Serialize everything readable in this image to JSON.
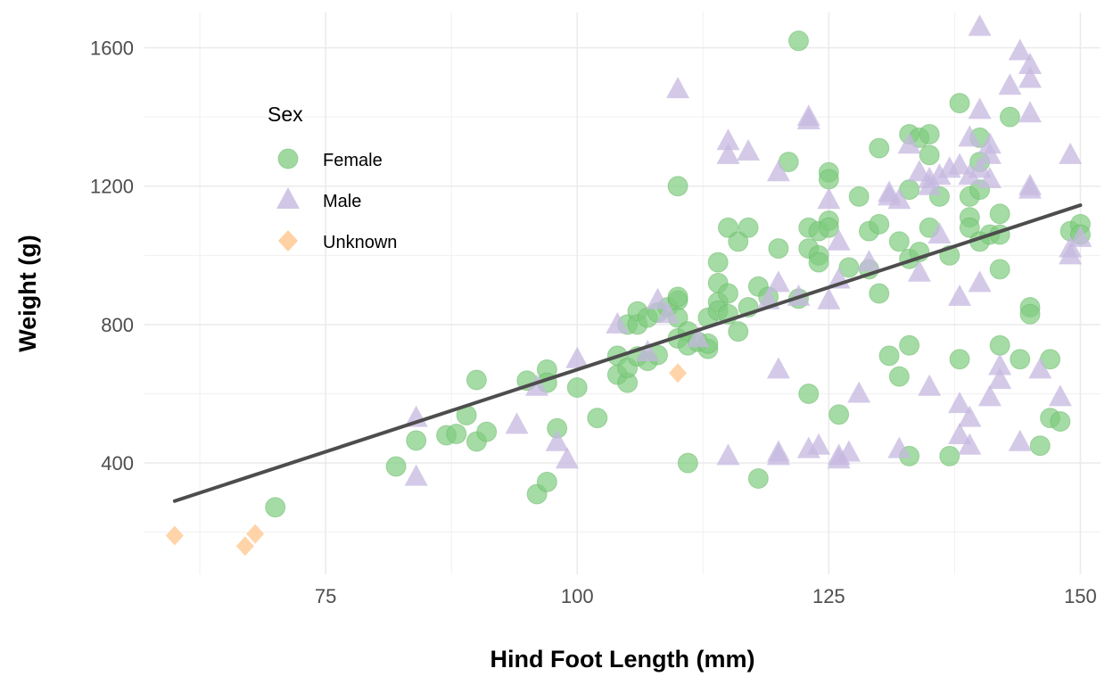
{
  "chart_data": {
    "type": "scatter",
    "xlabel": "Hind Foot Length (mm)",
    "ylabel": "Weight (g)",
    "xlim": [
      57,
      152
    ],
    "ylim": [
      78,
      1702
    ],
    "x_ticks": [
      75,
      100,
      125,
      150
    ],
    "y_ticks": [
      400,
      800,
      1200,
      1600
    ],
    "x_tick_labels": [
      "75",
      "100",
      "125",
      "150"
    ],
    "y_tick_labels": [
      "400",
      "800",
      "1200",
      "1600"
    ],
    "grid": true,
    "legend": {
      "title": "Sex",
      "placement": "top-left inside",
      "entries": [
        {
          "label": "Female",
          "shape": "circle",
          "color": "#7fcc7f"
        },
        {
          "label": "Male",
          "shape": "triangle",
          "color": "#c6b8e0"
        },
        {
          "label": "Unknown",
          "shape": "diamond",
          "color": "#ffcc99"
        }
      ]
    },
    "trend_line": {
      "x": [
        60,
        150
      ],
      "y": [
        290,
        1145
      ],
      "color": "#4d4d4d"
    },
    "series": [
      {
        "name": "Female",
        "shape": "circle",
        "color": "#7fcc7f",
        "points": [
          [
            70,
            272
          ],
          [
            82,
            390
          ],
          [
            84,
            465
          ],
          [
            87,
            480
          ],
          [
            88,
            484
          ],
          [
            89,
            538
          ],
          [
            90,
            462
          ],
          [
            90,
            640
          ],
          [
            91,
            490
          ],
          [
            95,
            638
          ],
          [
            96,
            310
          ],
          [
            97,
            345
          ],
          [
            97,
            670
          ],
          [
            97,
            632
          ],
          [
            98,
            500
          ],
          [
            100,
            618
          ],
          [
            102,
            530
          ],
          [
            104,
            655
          ],
          [
            104,
            710
          ],
          [
            105,
            800
          ],
          [
            105,
            632
          ],
          [
            105,
            675
          ],
          [
            106,
            708
          ],
          [
            106,
            838
          ],
          [
            106,
            800
          ],
          [
            107,
            695
          ],
          [
            107,
            820
          ],
          [
            108,
            712
          ],
          [
            108,
            835
          ],
          [
            109,
            850
          ],
          [
            110,
            870
          ],
          [
            110,
            880
          ],
          [
            110,
            760
          ],
          [
            110,
            820
          ],
          [
            111,
            400
          ],
          [
            111,
            780
          ],
          [
            111,
            740
          ],
          [
            112,
            750
          ],
          [
            113,
            730
          ],
          [
            113,
            745
          ],
          [
            113,
            820
          ],
          [
            114,
            980
          ],
          [
            114,
            920
          ],
          [
            114,
            865
          ],
          [
            114,
            840
          ],
          [
            115,
            1080
          ],
          [
            115,
            890
          ],
          [
            115,
            830
          ],
          [
            116,
            1040
          ],
          [
            116,
            780
          ],
          [
            117,
            1080
          ],
          [
            117,
            850
          ],
          [
            118,
            910
          ],
          [
            118,
            355
          ],
          [
            119,
            880
          ],
          [
            120,
            1020
          ],
          [
            110,
            1200
          ],
          [
            121,
            1270
          ],
          [
            122,
            1620
          ],
          [
            122,
            875
          ],
          [
            123,
            1080
          ],
          [
            123,
            600
          ],
          [
            123,
            1020
          ],
          [
            124,
            1070
          ],
          [
            124,
            1000
          ],
          [
            124,
            980
          ],
          [
            125,
            1240
          ],
          [
            125,
            1220
          ],
          [
            125,
            1100
          ],
          [
            125,
            1080
          ],
          [
            126,
            540
          ],
          [
            127,
            965
          ],
          [
            128,
            1170
          ],
          [
            129,
            960
          ],
          [
            129,
            1070
          ],
          [
            130,
            1090
          ],
          [
            130,
            1310
          ],
          [
            130,
            890
          ],
          [
            131,
            710
          ],
          [
            132,
            1040
          ],
          [
            132,
            650
          ],
          [
            133,
            1350
          ],
          [
            133,
            1190
          ],
          [
            133,
            990
          ],
          [
            133,
            740
          ],
          [
            133,
            420
          ],
          [
            134,
            1010
          ],
          [
            134,
            1340
          ],
          [
            135,
            1290
          ],
          [
            135,
            1350
          ],
          [
            135,
            1080
          ],
          [
            136,
            1170
          ],
          [
            137,
            1000
          ],
          [
            137,
            420
          ],
          [
            138,
            1440
          ],
          [
            138,
            700
          ],
          [
            139,
            1170
          ],
          [
            139,
            1110
          ],
          [
            139,
            1080
          ],
          [
            140,
            1340
          ],
          [
            140,
            1190
          ],
          [
            140,
            1270
          ],
          [
            140,
            1040
          ],
          [
            141,
            1060
          ],
          [
            142,
            1120
          ],
          [
            142,
            1060
          ],
          [
            142,
            960
          ],
          [
            142,
            740
          ],
          [
            143,
            1400
          ],
          [
            144,
            700
          ],
          [
            145,
            850
          ],
          [
            145,
            830
          ],
          [
            146,
            450
          ],
          [
            147,
            530
          ],
          [
            147,
            700
          ],
          [
            148,
            520
          ],
          [
            149,
            1070
          ],
          [
            150,
            1090
          ],
          [
            150,
            1060
          ]
        ]
      },
      {
        "name": "Male",
        "shape": "triangle",
        "color": "#c6b8e0",
        "points": [
          [
            84,
            530
          ],
          [
            84,
            360
          ],
          [
            94,
            510
          ],
          [
            96,
            620
          ],
          [
            98,
            460
          ],
          [
            99,
            410
          ],
          [
            100,
            700
          ],
          [
            104,
            800
          ],
          [
            107,
            720
          ],
          [
            108,
            870
          ],
          [
            109,
            830
          ],
          [
            110,
            1480
          ],
          [
            112,
            760
          ],
          [
            115,
            1330
          ],
          [
            115,
            1290
          ],
          [
            115,
            420
          ],
          [
            117,
            1300
          ],
          [
            119,
            870
          ],
          [
            120,
            670
          ],
          [
            120,
            430
          ],
          [
            120,
            420
          ],
          [
            120,
            1240
          ],
          [
            120,
            920
          ],
          [
            122,
            880
          ],
          [
            123,
            1400
          ],
          [
            123,
            1390
          ],
          [
            123,
            440
          ],
          [
            124,
            450
          ],
          [
            125,
            1160
          ],
          [
            125,
            870
          ],
          [
            126,
            410
          ],
          [
            126,
            420
          ],
          [
            126,
            1040
          ],
          [
            126,
            930
          ],
          [
            127,
            430
          ],
          [
            128,
            600
          ],
          [
            129,
            980
          ],
          [
            131,
            1170
          ],
          [
            131,
            1180
          ],
          [
            132,
            1160
          ],
          [
            132,
            440
          ],
          [
            133,
            1320
          ],
          [
            134,
            1240
          ],
          [
            134,
            950
          ],
          [
            135,
            620
          ],
          [
            135,
            1200
          ],
          [
            135,
            1220
          ],
          [
            136,
            1230
          ],
          [
            136,
            1060
          ],
          [
            137,
            1250
          ],
          [
            138,
            880
          ],
          [
            138,
            570
          ],
          [
            138,
            480
          ],
          [
            138,
            1260
          ],
          [
            139,
            450
          ],
          [
            139,
            530
          ],
          [
            139,
            1340
          ],
          [
            139,
            1230
          ],
          [
            140,
            1660
          ],
          [
            140,
            1420
          ],
          [
            140,
            1250
          ],
          [
            140,
            920
          ],
          [
            141,
            1320
          ],
          [
            141,
            1290
          ],
          [
            141,
            590
          ],
          [
            141,
            1220
          ],
          [
            142,
            680
          ],
          [
            142,
            640
          ],
          [
            143,
            1490
          ],
          [
            144,
            460
          ],
          [
            144,
            1590
          ],
          [
            145,
            1550
          ],
          [
            145,
            1510
          ],
          [
            145,
            1410
          ],
          [
            145,
            1200
          ],
          [
            145,
            1190
          ],
          [
            146,
            670
          ],
          [
            148,
            590
          ],
          [
            149,
            1000
          ],
          [
            149,
            1020
          ],
          [
            149,
            1290
          ],
          [
            150,
            1050
          ]
        ]
      },
      {
        "name": "Unknown",
        "shape": "diamond",
        "color": "#ffcc99",
        "points": [
          [
            60,
            190
          ],
          [
            67,
            160
          ],
          [
            68,
            195
          ],
          [
            110,
            660
          ]
        ]
      }
    ]
  }
}
